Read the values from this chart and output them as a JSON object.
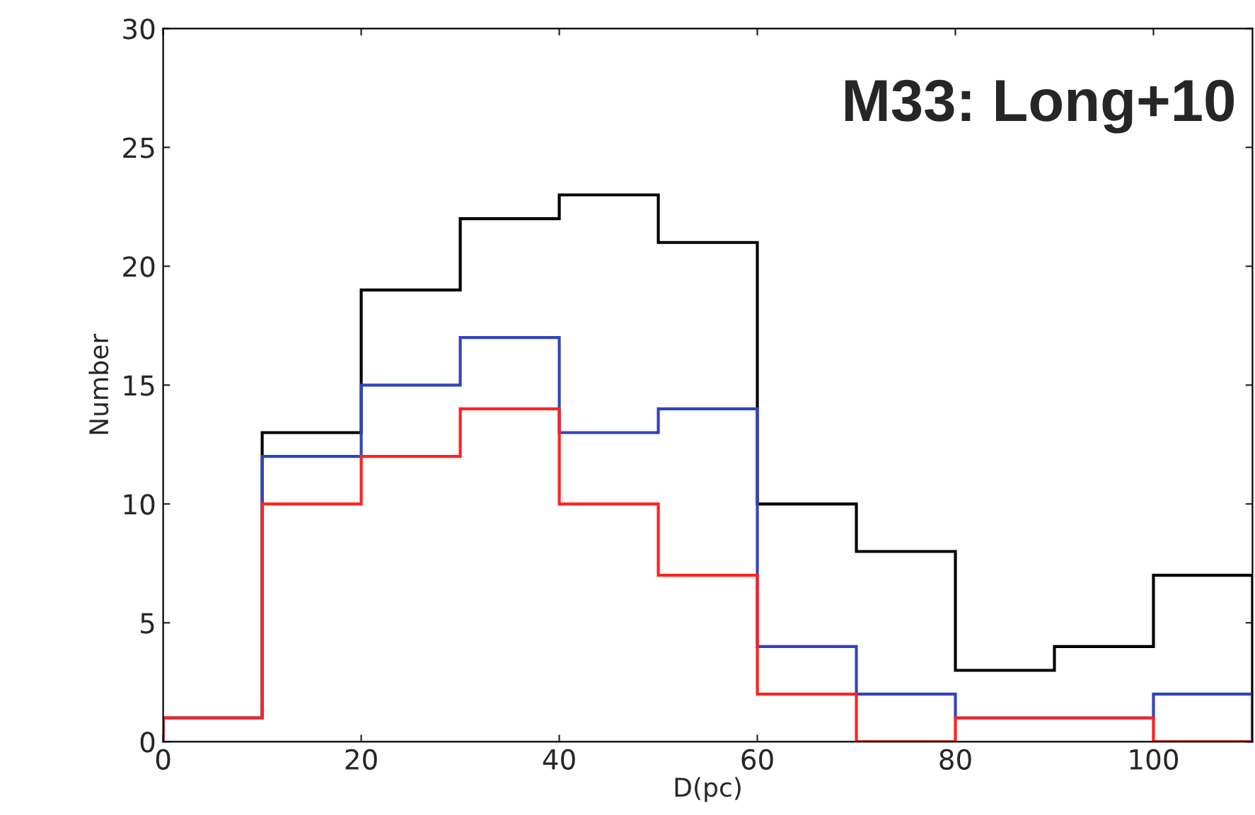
{
  "chart_data": {
    "type": "histogram",
    "xlabel": "D(pc)",
    "ylabel": "Number",
    "annotations": [
      "M33: Long+10"
    ],
    "bins": [
      0,
      10,
      20,
      30,
      40,
      50,
      60,
      70,
      80,
      90,
      100,
      110
    ],
    "series": [
      {
        "color": "#000000",
        "values": [
          1,
          13,
          19,
          22,
          23,
          21,
          10,
          8,
          3,
          4,
          7
        ]
      },
      {
        "color": "#3344bb",
        "values": [
          1,
          12,
          15,
          17,
          13,
          14,
          4,
          2,
          1,
          1,
          2
        ]
      },
      {
        "color": "#ff2222",
        "values": [
          1,
          10,
          12,
          14,
          10,
          7,
          2,
          0,
          1,
          1,
          0
        ]
      }
    ],
    "xlim": [
      0,
      110
    ],
    "xticks": [
      0,
      20,
      40,
      60,
      80,
      100
    ],
    "ylim": [
      0,
      30
    ],
    "yticks": [
      0,
      5,
      10,
      15,
      20,
      25,
      30
    ],
    "grid": false
  }
}
